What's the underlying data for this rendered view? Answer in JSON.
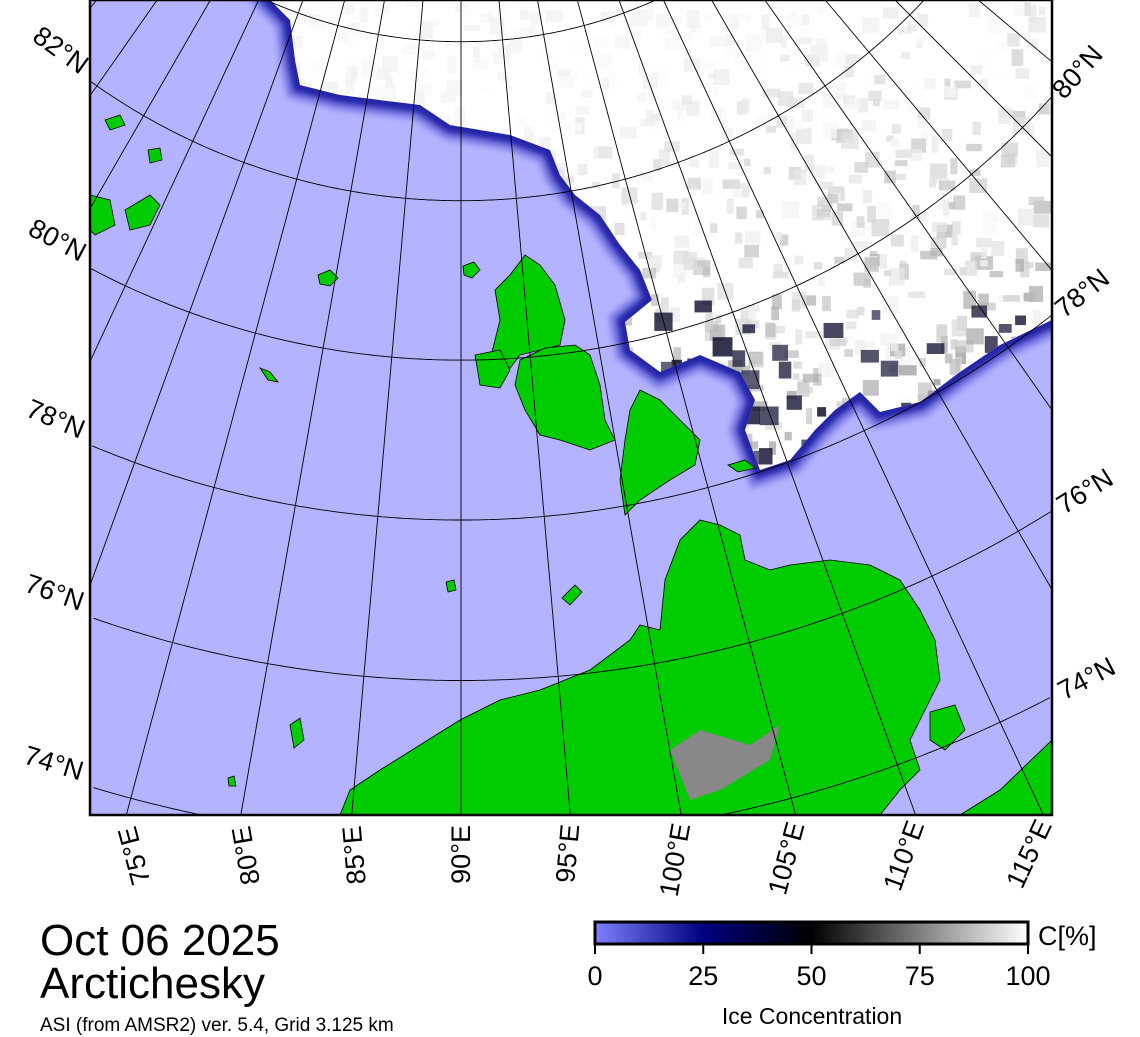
{
  "title": {
    "date": "Oct 06 2025",
    "region": "Arctichesky",
    "source": "ASI (from AMSR2) ver. 5.4,  Grid 3.125 km"
  },
  "map": {
    "lat_labels_left": [
      "82°N",
      "80°N",
      "78°N",
      "76°N",
      "74°N"
    ],
    "lat_labels_right": [
      "80°N",
      "78°N",
      "76°N",
      "74°N"
    ],
    "lon_labels": [
      "75°E",
      "80°E",
      "85°E",
      "90°E",
      "95°E",
      "100°E",
      "105°E",
      "110°E",
      "115°E"
    ],
    "colors": {
      "water": "#b3b3ff",
      "land": "#00cc00",
      "coast": "#888888",
      "ice_edge": "#000080"
    }
  },
  "colorbar": {
    "ticks": [
      "0",
      "25",
      "50",
      "75",
      "100"
    ],
    "unit": "C[%]",
    "label": "Ice Concentration",
    "stops": [
      "#7f7fff",
      "#000080",
      "#000000",
      "#ffffff"
    ]
  }
}
